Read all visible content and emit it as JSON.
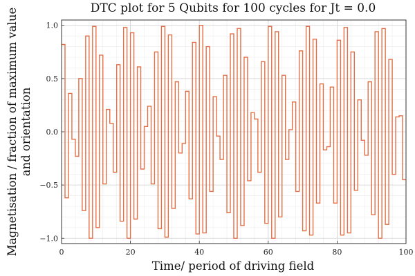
{
  "chart_data": {
    "type": "line",
    "title": "DTC plot for 5 Qubits for 100 cycles for Jt = 0.0",
    "xlabel": "Time/ period of driving field",
    "ylabel_lines": [
      "Magnetisation / fraction of maximum value",
      "and orientation"
    ],
    "xlim": [
      0,
      100
    ],
    "ylim": [
      -1.05,
      1.05
    ],
    "xticks": [
      0,
      20,
      40,
      60,
      80,
      100
    ],
    "xtick_labels": [
      "0",
      "20",
      "40",
      "60",
      "80",
      "100"
    ],
    "yticks": [
      -1.0,
      -0.5,
      0.0,
      0.5,
      1.0
    ],
    "ytick_labels": [
      "−1.0",
      "−0.5",
      "0.0",
      "0.5",
      "1.0"
    ],
    "grid": true,
    "legend": false,
    "step": "post",
    "series": [
      {
        "color": "#e26f46",
        "values": [
          0.82,
          -0.62,
          0.36,
          -0.07,
          -0.23,
          0.5,
          -0.74,
          0.9,
          -1.0,
          0.99,
          -0.9,
          0.72,
          -0.49,
          0.21,
          0.08,
          -0.38,
          0.63,
          -0.84,
          0.98,
          -1.0,
          0.93,
          -0.82,
          0.61,
          -0.35,
          0.05,
          0.24,
          -0.49,
          0.75,
          -0.91,
          0.99,
          -0.99,
          0.91,
          -0.72,
          0.47,
          -0.2,
          -0.11,
          0.38,
          -0.63,
          0.84,
          -0.96,
          1.0,
          -0.95,
          0.8,
          -0.56,
          0.33,
          -0.04,
          -0.26,
          0.53,
          -0.76,
          0.92,
          -1.0,
          0.97,
          -0.88,
          0.7,
          -0.46,
          0.18,
          0.12,
          -0.38,
          0.66,
          -0.86,
          0.99,
          -1.0,
          0.94,
          -0.8,
          0.53,
          -0.26,
          0.02,
          0.28,
          -0.56,
          0.76,
          -0.93,
          0.99,
          -0.97,
          0.87,
          -0.67,
          0.45,
          -0.17,
          -0.14,
          0.42,
          -0.67,
          0.86,
          -0.97,
          0.98,
          -0.95,
          0.75,
          -0.55,
          0.3,
          -0.08,
          -0.22,
          0.47,
          -0.78,
          0.94,
          -1.0,
          0.97,
          -0.87,
          0.68,
          -0.4,
          0.14,
          0.15,
          -0.45,
          -0.45
        ]
      }
    ]
  }
}
